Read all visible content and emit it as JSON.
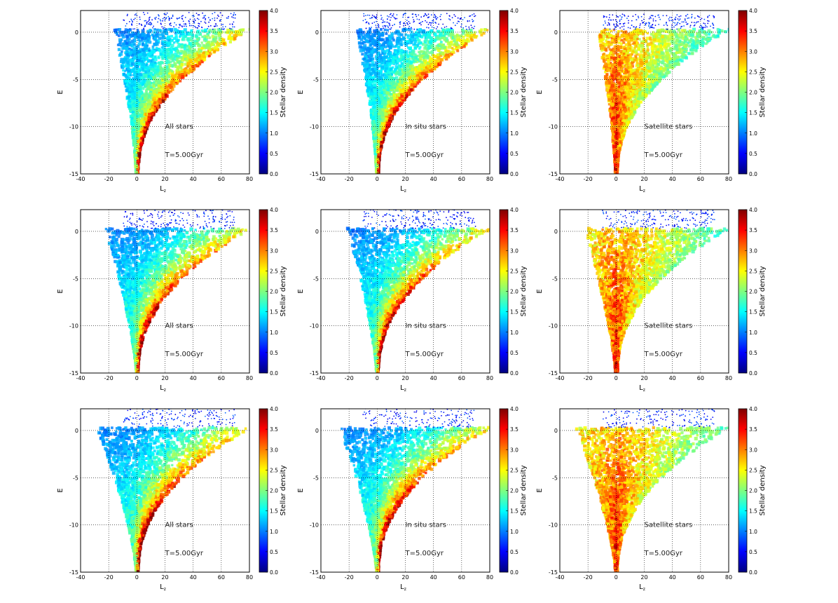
{
  "chart_data": {
    "type": "heatmap",
    "layout": "3x3 grid",
    "xlabel": "L",
    "xlabel_subscript": "z",
    "ylabel": "E",
    "xlim": [
      -40,
      80
    ],
    "ylim": [
      -15,
      2.3
    ],
    "xticks": [
      -40,
      -20,
      0,
      20,
      40,
      60,
      80
    ],
    "yticks": [
      -15,
      -10,
      -5,
      0
    ],
    "grid": true,
    "colorbar": {
      "label": "Stellar density",
      "range": [
        0.0,
        4.0
      ],
      "ticks": [
        "0.0",
        "0.5",
        "1.0",
        "1.5",
        "2.0",
        "2.5",
        "3.0",
        "3.5",
        "4.0"
      ],
      "colormap": "jet",
      "colors": [
        "#00007f",
        "#0000ff",
        "#007fff",
        "#00ffff",
        "#7fff7f",
        "#ffff00",
        "#ff7f00",
        "#ff0000",
        "#7f0000"
      ]
    },
    "panels": [
      {
        "label": "All stars",
        "time": "T=5.00Gyr",
        "population": "all",
        "row": 0,
        "spread": 0.55
      },
      {
        "label": "In situ stars",
        "time": "T=5.00Gyr",
        "population": "insitu",
        "row": 0,
        "spread": 0.5
      },
      {
        "label": "Satellite stars",
        "time": "T=5.00Gyr",
        "population": "satellite",
        "row": 0,
        "spread": 0.45
      },
      {
        "label": "All stars",
        "time": "T=5.00Gyr",
        "population": "all",
        "row": 1,
        "spread": 0.8
      },
      {
        "label": "In situ stars",
        "time": "T=5.00Gyr",
        "population": "insitu",
        "row": 1,
        "spread": 0.75
      },
      {
        "label": "Satellite stars",
        "time": "T=5.00Gyr",
        "population": "satellite",
        "row": 1,
        "spread": 0.8
      },
      {
        "label": "All stars",
        "time": "T=5.00Gyr",
        "population": "all",
        "row": 2,
        "spread": 1.0
      },
      {
        "label": "In situ stars",
        "time": "T=5.00Gyr",
        "population": "insitu",
        "row": 2,
        "spread": 0.95
      },
      {
        "label": "Satellite stars",
        "time": "T=5.00Gyr",
        "population": "satellite",
        "row": 2,
        "spread": 1.0
      }
    ]
  }
}
